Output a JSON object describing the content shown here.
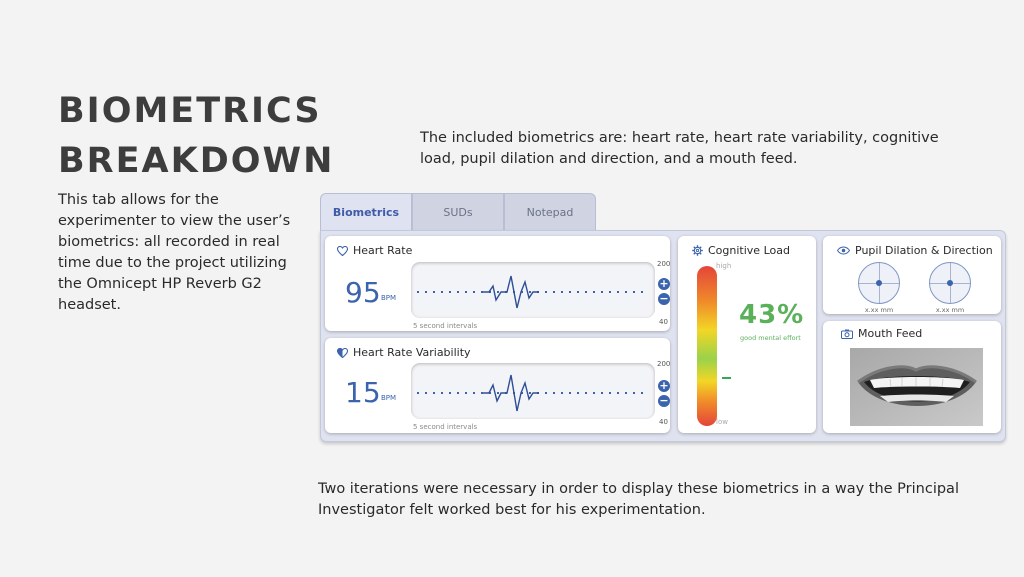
{
  "page": {
    "title_line1": "BIOMETRICS",
    "title_line2": "BREAKDOWN",
    "left_description": "This tab allows for the experimenter to view the user’s biometrics: all recorded in real time due to the project utilizing the Omnicept HP Reverb G2 headset.",
    "top_description": "The included biometrics are: heart rate, heart rate variability, cognitive load, pupil dilation and direction, and a mouth feed.",
    "bottom_description": "Two iterations were necessary in order to display these biometrics in a way the Principal Investigator felt worked best for his experimentation."
  },
  "tabs": [
    {
      "label": "Biometrics",
      "active": true
    },
    {
      "label": "SUDs",
      "active": false
    },
    {
      "label": "Notepad",
      "active": false
    }
  ],
  "heart_rate": {
    "title": "Heart Rate",
    "value": "95",
    "unit": "BPM",
    "scale_max": "200",
    "scale_min": "40",
    "interval_label": "5 second intervals",
    "icon": "heart-outline-icon"
  },
  "hrv": {
    "title": "Heart Rate Variability",
    "value": "15",
    "unit": "BPM",
    "scale_max": "200",
    "scale_min": "40",
    "interval_label": "5 second intervals",
    "icon": "heart-half-icon"
  },
  "controls": {
    "plus": "+",
    "minus": "−"
  },
  "cognitive_load": {
    "title": "Cognitive Load",
    "percent": "43%",
    "state": "good mental effort",
    "high_label": "high",
    "low_label": "low",
    "level": 0.43,
    "icon": "gear-icon"
  },
  "pupil": {
    "title": "Pupil Dilation & Direction",
    "left_value": "x.xx mm",
    "right_value": "x.xx mm",
    "icon": "eye-icon"
  },
  "mouth_feed": {
    "title": "Mouth Feed",
    "icon": "camera-icon"
  },
  "colors": {
    "accent": "#3b64ad",
    "good": "#5bb05a",
    "background": "#f4f3f4"
  }
}
